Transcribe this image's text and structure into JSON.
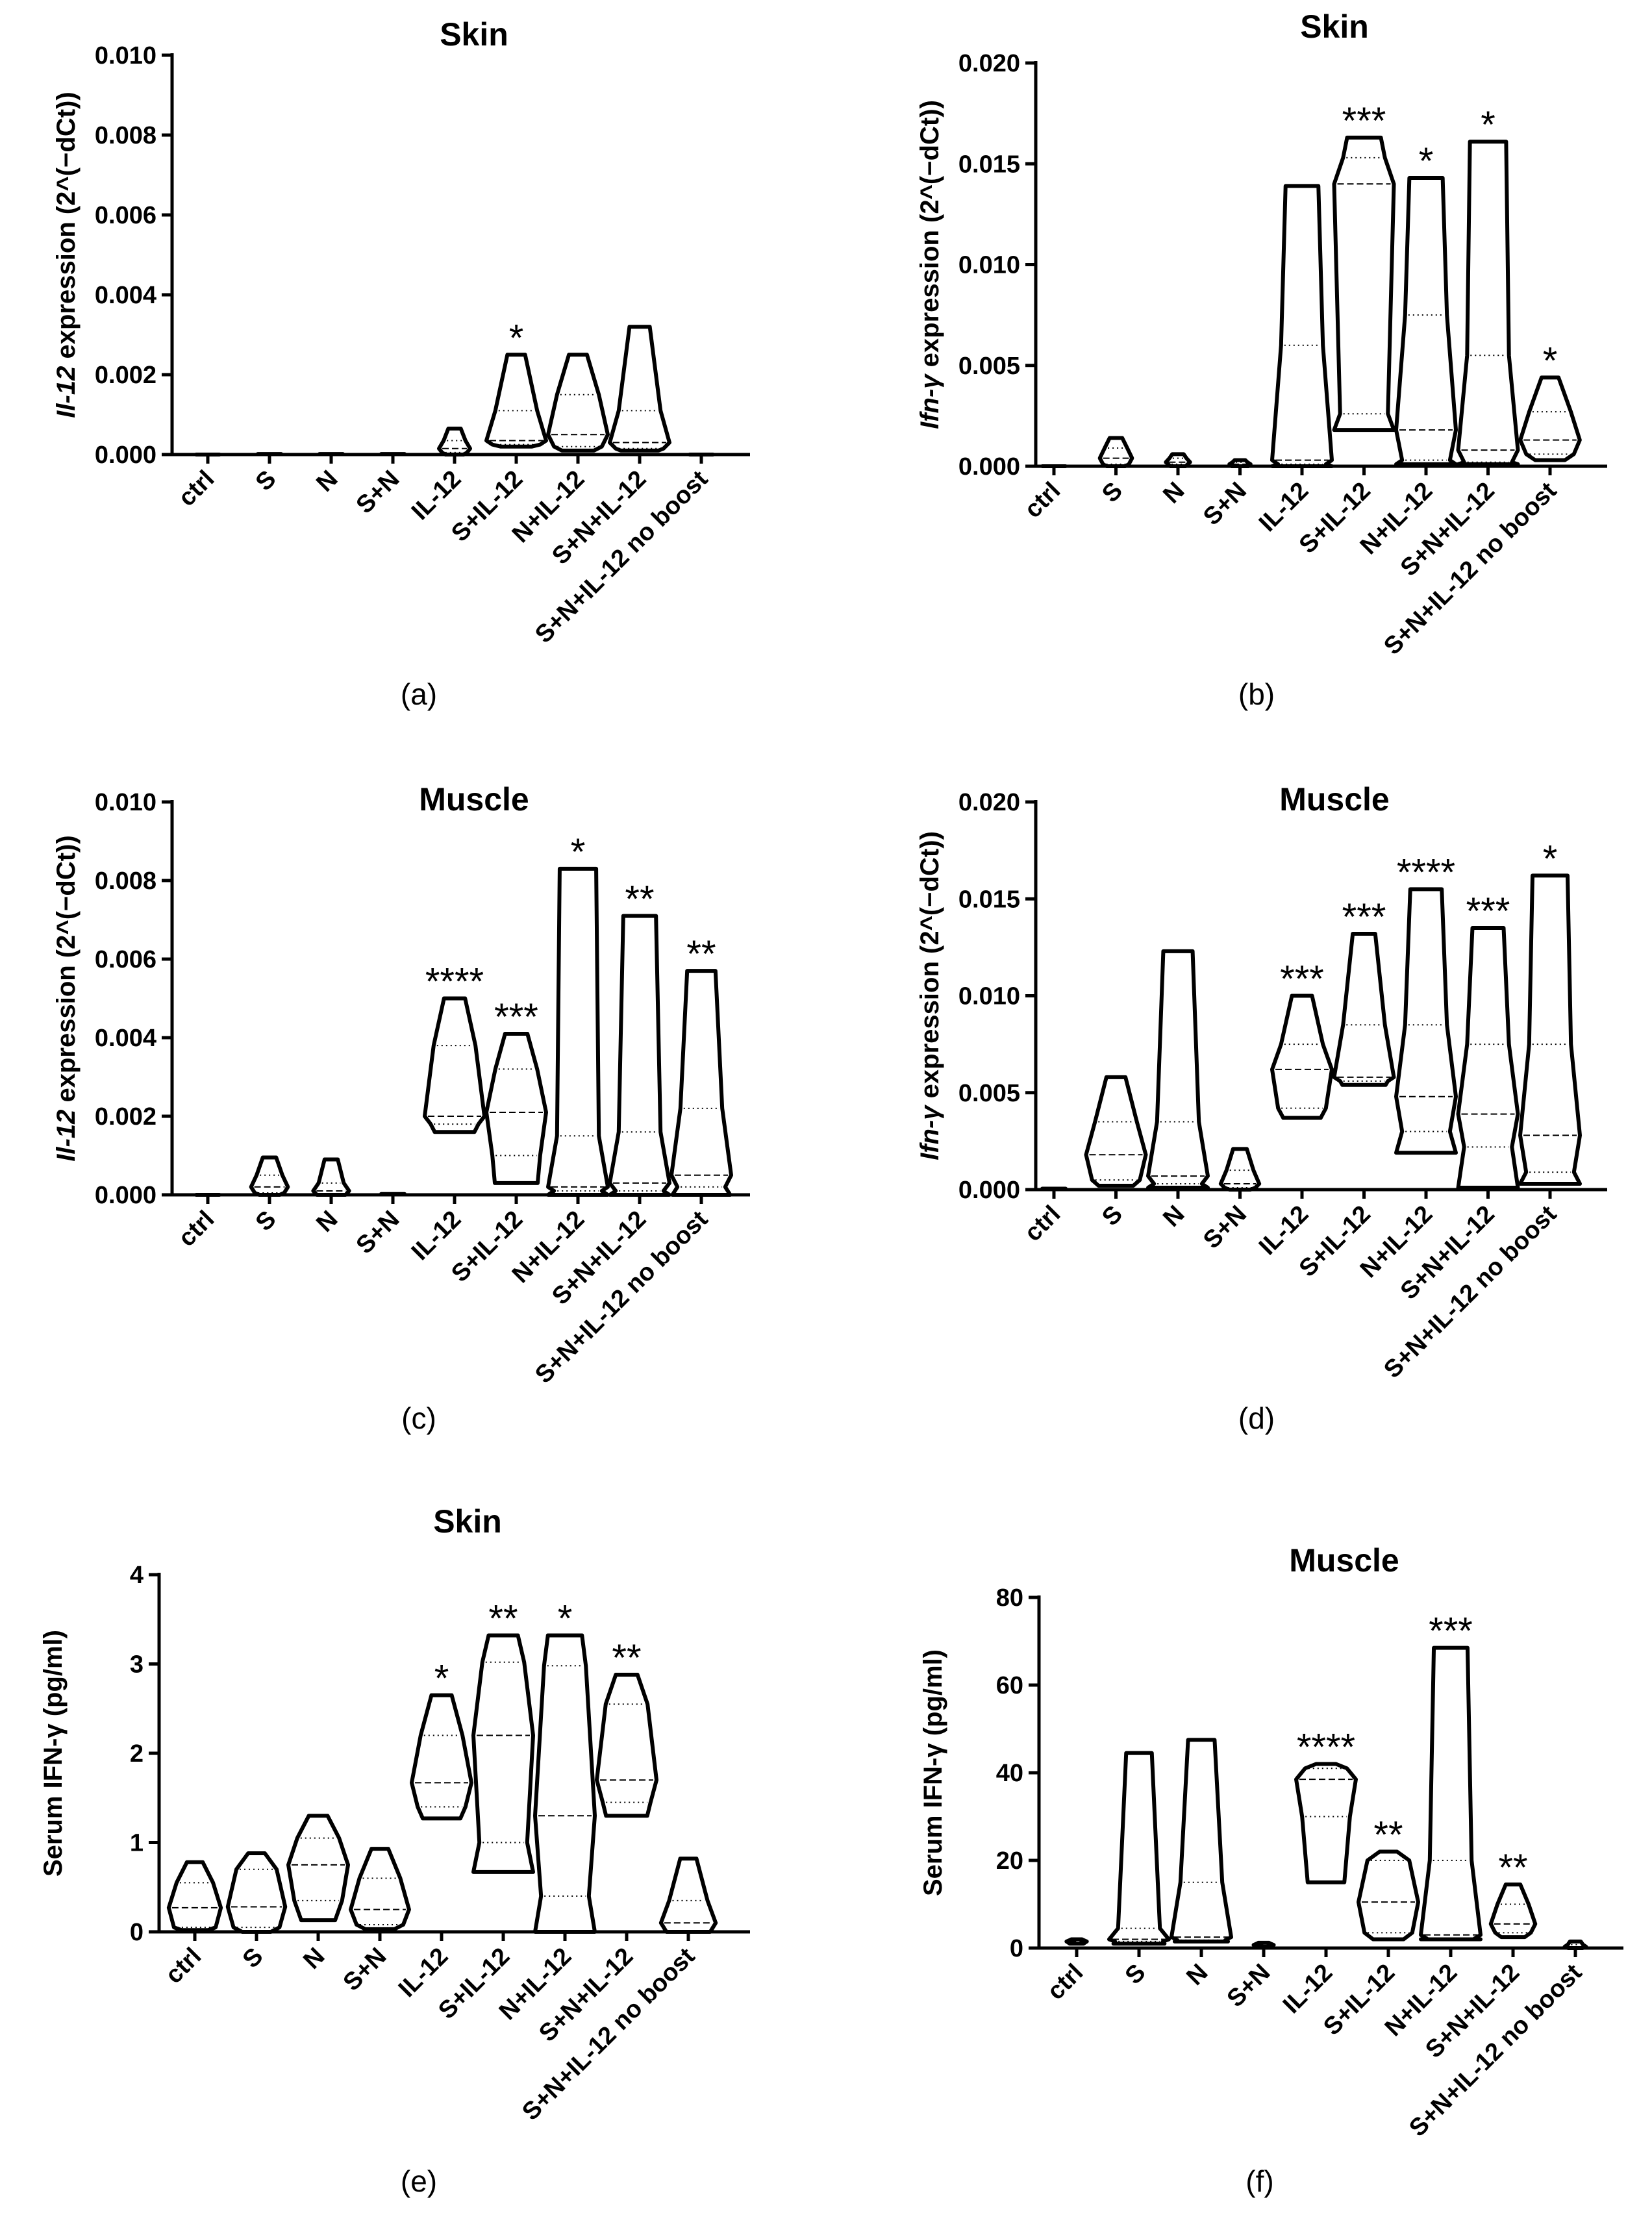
{
  "chart_data": [
    {
      "id": "a",
      "panel_label": "(a)",
      "type": "violin",
      "title": "Skin",
      "ylabel_italic": "Il-12",
      "ylabel_rest": " expression (2^(−dCt))",
      "ylim": [
        0,
        0.01
      ],
      "yticks": [
        "0.000",
        "0.002",
        "0.004",
        "0.006",
        "0.008",
        "0.010"
      ],
      "categories": [
        "ctrl",
        "S",
        "N",
        "S+N",
        "IL-12",
        "S+IL-12",
        "N+IL-12",
        "S+N+IL-12",
        "S+N+IL-12 no boost"
      ],
      "violins": [
        {
          "min": 0,
          "max": 0,
          "median": 0,
          "q1": 0,
          "q3": 0,
          "sig": ""
        },
        {
          "min": 0,
          "max": 3e-05,
          "median": 1e-05,
          "q1": 0,
          "q3": 2e-05,
          "sig": ""
        },
        {
          "min": 0,
          "max": 3e-05,
          "median": 1e-05,
          "q1": 0,
          "q3": 2e-05,
          "sig": ""
        },
        {
          "min": 0,
          "max": 3e-05,
          "median": 1e-05,
          "q1": 0,
          "q3": 2e-05,
          "sig": ""
        },
        {
          "min": 0,
          "max": 0.00065,
          "median": 0.00015,
          "q1": 5e-05,
          "q3": 0.00035,
          "sig": ""
        },
        {
          "min": 0.0002,
          "max": 0.0025,
          "median": 0.00035,
          "q1": 0.00025,
          "q3": 0.0011,
          "sig": "*"
        },
        {
          "min": 0.0001,
          "max": 0.0025,
          "median": 0.0005,
          "q1": 0.0002,
          "q3": 0.0015,
          "sig": ""
        },
        {
          "min": 0.0001,
          "max": 0.0032,
          "median": 0.0003,
          "q1": 0.00015,
          "q3": 0.0011,
          "sig": ""
        },
        {
          "min": 0,
          "max": 0,
          "median": 0,
          "q1": 0,
          "q3": 0,
          "sig": ""
        }
      ]
    },
    {
      "id": "b",
      "panel_label": "(b)",
      "type": "violin",
      "title": "Skin",
      "ylabel_italic": "Ifn-γ",
      "ylabel_rest": " expression (2^(−dCt))",
      "ylim": [
        0,
        0.02
      ],
      "yticks": [
        "0.000",
        "0.005",
        "0.010",
        "0.015",
        "0.020"
      ],
      "categories": [
        "ctrl",
        "S",
        "N",
        "S+N",
        "IL-12",
        "S+IL-12",
        "N+IL-12",
        "S+N+IL-12",
        "S+N+IL-12 no boost"
      ],
      "violins": [
        {
          "min": 0,
          "max": 0,
          "median": 0,
          "q1": 0,
          "q3": 0,
          "sig": ""
        },
        {
          "min": 0,
          "max": 0.0014,
          "median": 0.0004,
          "q1": 0.0001,
          "q3": 0.0009,
          "sig": ""
        },
        {
          "min": 0,
          "max": 0.0006,
          "median": 0.0002,
          "q1": 0.0001,
          "q3": 0.0004,
          "sig": ""
        },
        {
          "min": 0,
          "max": 0.0003,
          "median": 0.0001,
          "q1": 0,
          "q3": 0.0002,
          "sig": ""
        },
        {
          "min": 0,
          "max": 0.0139,
          "median": 0.0003,
          "q1": 0.0001,
          "q3": 0.006,
          "sig": ""
        },
        {
          "min": 0.0018,
          "max": 0.0163,
          "median": 0.014,
          "q1": 0.0026,
          "q3": 0.0153,
          "sig": "***"
        },
        {
          "min": 0.0001,
          "max": 0.0143,
          "median": 0.0018,
          "q1": 0.0003,
          "q3": 0.0075,
          "sig": "*"
        },
        {
          "min": 0.0001,
          "max": 0.0161,
          "median": 0.0008,
          "q1": 0.0002,
          "q3": 0.0055,
          "sig": "*"
        },
        {
          "min": 0.0003,
          "max": 0.0044,
          "median": 0.0013,
          "q1": 0.0006,
          "q3": 0.0027,
          "sig": "*"
        }
      ]
    },
    {
      "id": "c",
      "panel_label": "(c)",
      "type": "violin",
      "title": "Muscle",
      "ylabel_italic": "Il-12",
      "ylabel_rest": " expression (2^(−dCt))",
      "ylim": [
        0,
        0.01
      ],
      "yticks": [
        "0.000",
        "0.002",
        "0.004",
        "0.006",
        "0.008",
        "0.010"
      ],
      "categories": [
        "ctrl",
        "S",
        "N",
        "S+N",
        "IL-12",
        "S+IL-12",
        "N+IL-12",
        "S+N+IL-12",
        "S+N+IL-12 no boost"
      ],
      "violins": [
        {
          "min": 0,
          "max": 0,
          "median": 0,
          "q1": 0,
          "q3": 0,
          "sig": ""
        },
        {
          "min": 0,
          "max": 0.00095,
          "median": 0.0002,
          "q1": 5e-05,
          "q3": 0.0005,
          "sig": ""
        },
        {
          "min": 0,
          "max": 0.0009,
          "median": 0.0001,
          "q1": 0,
          "q3": 0.0003,
          "sig": ""
        },
        {
          "min": 0,
          "max": 4e-05,
          "median": 1e-05,
          "q1": 0,
          "q3": 2e-05,
          "sig": ""
        },
        {
          "min": 0.0016,
          "max": 0.005,
          "median": 0.002,
          "q1": 0.0018,
          "q3": 0.0038,
          "sig": "****"
        },
        {
          "min": 0.0003,
          "max": 0.0041,
          "median": 0.0021,
          "q1": 0.001,
          "q3": 0.0032,
          "sig": "***"
        },
        {
          "min": 0,
          "max": 0.0083,
          "median": 0.0002,
          "q1": 0.0001,
          "q3": 0.0015,
          "sig": "*"
        },
        {
          "min": 0,
          "max": 0.0071,
          "median": 0.0003,
          "q1": 0.0001,
          "q3": 0.0016,
          "sig": "**"
        },
        {
          "min": 0,
          "max": 0.0057,
          "median": 0.0005,
          "q1": 0.0002,
          "q3": 0.0022,
          "sig": "**"
        }
      ]
    },
    {
      "id": "d",
      "panel_label": "(d)",
      "type": "violin",
      "title": "Muscle",
      "ylabel_italic": "Ifn-γ",
      "ylabel_rest": " expression (2^(−dCt))",
      "ylim": [
        0,
        0.02
      ],
      "yticks": [
        "0.000",
        "0.005",
        "0.010",
        "0.015",
        "0.020"
      ],
      "categories": [
        "ctrl",
        "S",
        "N",
        "S+N",
        "IL-12",
        "S+IL-12",
        "N+IL-12",
        "S+N+IL-12",
        "S+N+IL-12 no boost"
      ],
      "violins": [
        {
          "min": 0,
          "max": 0.0001,
          "median": 2e-05,
          "q1": 0,
          "q3": 5e-05,
          "sig": ""
        },
        {
          "min": 0.0002,
          "max": 0.0058,
          "median": 0.0018,
          "q1": 0.0005,
          "q3": 0.0035,
          "sig": ""
        },
        {
          "min": 0.0001,
          "max": 0.0123,
          "median": 0.0007,
          "q1": 0.0003,
          "q3": 0.0035,
          "sig": ""
        },
        {
          "min": 0,
          "max": 0.0021,
          "median": 0.0003,
          "q1": 0.0001,
          "q3": 0.001,
          "sig": ""
        },
        {
          "min": 0.0037,
          "max": 0.01,
          "median": 0.0062,
          "q1": 0.0042,
          "q3": 0.0075,
          "sig": "***"
        },
        {
          "min": 0.0054,
          "max": 0.0132,
          "median": 0.0058,
          "q1": 0.0056,
          "q3": 0.0085,
          "sig": "***"
        },
        {
          "min": 0.0019,
          "max": 0.0155,
          "median": 0.0048,
          "q1": 0.003,
          "q3": 0.0085,
          "sig": "****"
        },
        {
          "min": 0.0001,
          "max": 0.0135,
          "median": 0.0039,
          "q1": 0.0022,
          "q3": 0.0075,
          "sig": "***"
        },
        {
          "min": 0.0003,
          "max": 0.0162,
          "median": 0.0028,
          "q1": 0.0009,
          "q3": 0.0075,
          "sig": "*"
        }
      ]
    },
    {
      "id": "e",
      "panel_label": "(e)",
      "type": "violin",
      "title": "Skin",
      "ylabel_italic": "",
      "ylabel_rest": "Serum IFN-γ (pg/ml)",
      "ylim": [
        0,
        4
      ],
      "yticks": [
        "0",
        "1",
        "2",
        "3",
        "4"
      ],
      "categories": [
        "ctrl",
        "S",
        "N",
        "S+N",
        "IL-12",
        "S+IL-12",
        "N+IL-12",
        "S+N+IL-12",
        "S+N+IL-12 no boost"
      ],
      "violins": [
        {
          "min": 0.02,
          "max": 0.78,
          "median": 0.27,
          "q1": 0.05,
          "q3": 0.55,
          "sig": ""
        },
        {
          "min": 0.0,
          "max": 0.88,
          "median": 0.28,
          "q1": 0.05,
          "q3": 0.7,
          "sig": ""
        },
        {
          "min": 0.13,
          "max": 1.3,
          "median": 0.75,
          "q1": 0.35,
          "q3": 1.05,
          "sig": ""
        },
        {
          "min": 0.03,
          "max": 0.93,
          "median": 0.25,
          "q1": 0.08,
          "q3": 0.6,
          "sig": ""
        },
        {
          "min": 1.27,
          "max": 2.65,
          "median": 1.67,
          "q1": 1.4,
          "q3": 2.2,
          "sig": "*"
        },
        {
          "min": 0.67,
          "max": 3.32,
          "median": 2.2,
          "q1": 1.0,
          "q3": 3.02,
          "sig": "**"
        },
        {
          "min": 0.0,
          "max": 3.32,
          "median": 1.3,
          "q1": 0.4,
          "q3": 2.98,
          "sig": "*"
        },
        {
          "min": 1.3,
          "max": 2.88,
          "median": 1.7,
          "q1": 1.45,
          "q3": 2.55,
          "sig": "**"
        },
        {
          "min": 0.0,
          "max": 0.82,
          "median": 0.1,
          "q1": 0.0,
          "q3": 0.35,
          "sig": ""
        }
      ]
    },
    {
      "id": "f",
      "panel_label": "(f)",
      "type": "violin",
      "title": "Muscle",
      "ylabel_italic": "",
      "ylabel_rest": "Serum IFN-γ (pg/ml)",
      "ylim": [
        0,
        80
      ],
      "yticks": [
        "0",
        "20",
        "40",
        "60",
        "80"
      ],
      "categories": [
        "ctrl",
        "S",
        "N",
        "S+N",
        "IL-12",
        "S+IL-12",
        "N+IL-12",
        "S+N+IL-12",
        "S+N+IL-12 no boost"
      ],
      "violins": [
        {
          "min": 1.0,
          "max": 2.0,
          "median": 1.5,
          "q1": 1.2,
          "q3": 1.8,
          "sig": ""
        },
        {
          "min": 1.0,
          "max": 44.5,
          "median": 2.0,
          "q1": 1.5,
          "q3": 4.5,
          "sig": ""
        },
        {
          "min": 1.5,
          "max": 47.5,
          "median": 2.5,
          "q1": 1.8,
          "q3": 15,
          "sig": ""
        },
        {
          "min": 0.3,
          "max": 1.2,
          "median": 0.7,
          "q1": 0.5,
          "q3": 1.0,
          "sig": ""
        },
        {
          "min": 15,
          "max": 42,
          "median": 38.5,
          "q1": 30,
          "q3": 41,
          "sig": "****"
        },
        {
          "min": 2.0,
          "max": 22,
          "median": 10.5,
          "q1": 3.5,
          "q3": 20,
          "sig": "**"
        },
        {
          "min": 2.0,
          "max": 68.5,
          "median": 3.0,
          "q1": 2.2,
          "q3": 20,
          "sig": "***"
        },
        {
          "min": 2.5,
          "max": 14.5,
          "median": 5.5,
          "q1": 3.5,
          "q3": 10,
          "sig": "**"
        },
        {
          "min": 0.0,
          "max": 1.5,
          "median": 0.3,
          "q1": 0.1,
          "q3": 0.8,
          "sig": ""
        }
      ]
    }
  ]
}
